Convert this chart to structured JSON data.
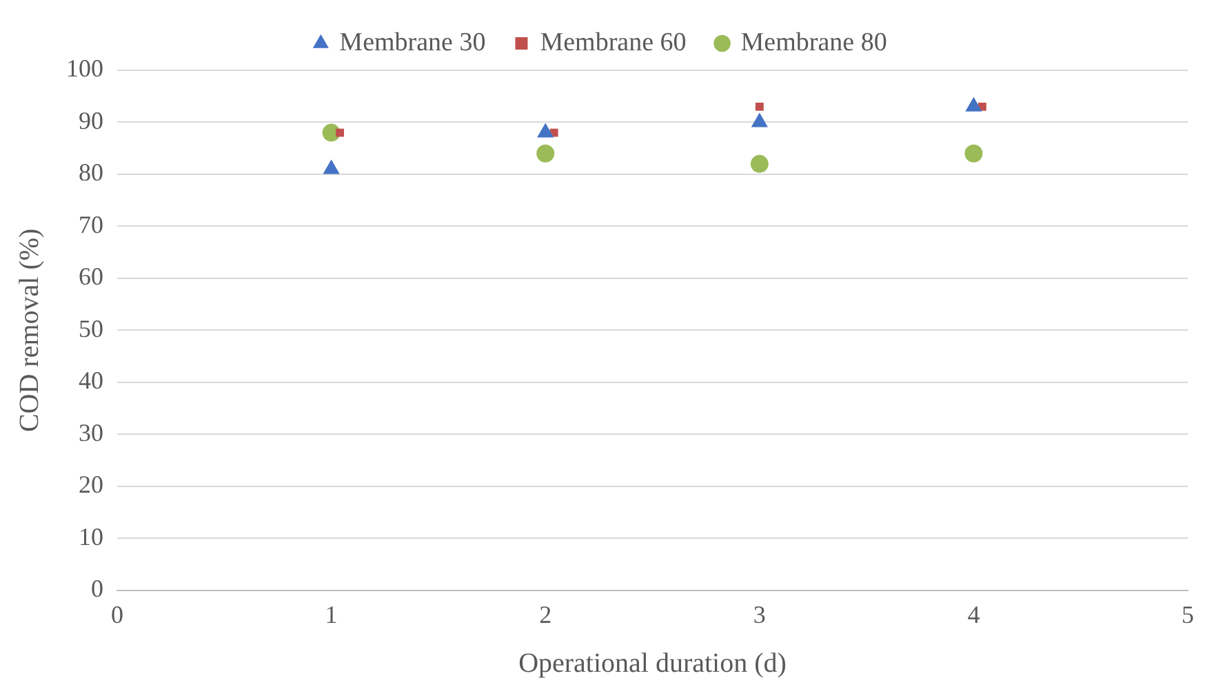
{
  "chart_data": {
    "type": "scatter",
    "xlabel": "Operational duration (d)",
    "ylabel": "COD removal (%)",
    "series": [
      {
        "name": "Membrane 30",
        "color": "#4472c4",
        "marker": "triangle",
        "x": [
          1,
          2,
          3,
          4
        ],
        "values": [
          81,
          88,
          90,
          93
        ]
      },
      {
        "name": "Membrane 60",
        "color": "#c0504d",
        "marker": "square",
        "x": [
          1.04,
          2.04,
          3.0,
          4.04
        ],
        "values": [
          88,
          88,
          93,
          93
        ]
      },
      {
        "name": "Membrane 80",
        "color": "#9bbb59",
        "marker": "circle",
        "x": [
          1,
          2,
          3,
          4
        ],
        "values": [
          88,
          84,
          82,
          84
        ]
      }
    ],
    "xlim": [
      0,
      5
    ],
    "xticks": [
      0,
      1,
      2,
      3,
      4,
      5
    ],
    "ylim": [
      0,
      100
    ],
    "yticks": [
      0,
      10,
      20,
      30,
      40,
      50,
      60,
      70,
      80,
      90,
      100
    ],
    "grid": "y",
    "legend": "top"
  }
}
